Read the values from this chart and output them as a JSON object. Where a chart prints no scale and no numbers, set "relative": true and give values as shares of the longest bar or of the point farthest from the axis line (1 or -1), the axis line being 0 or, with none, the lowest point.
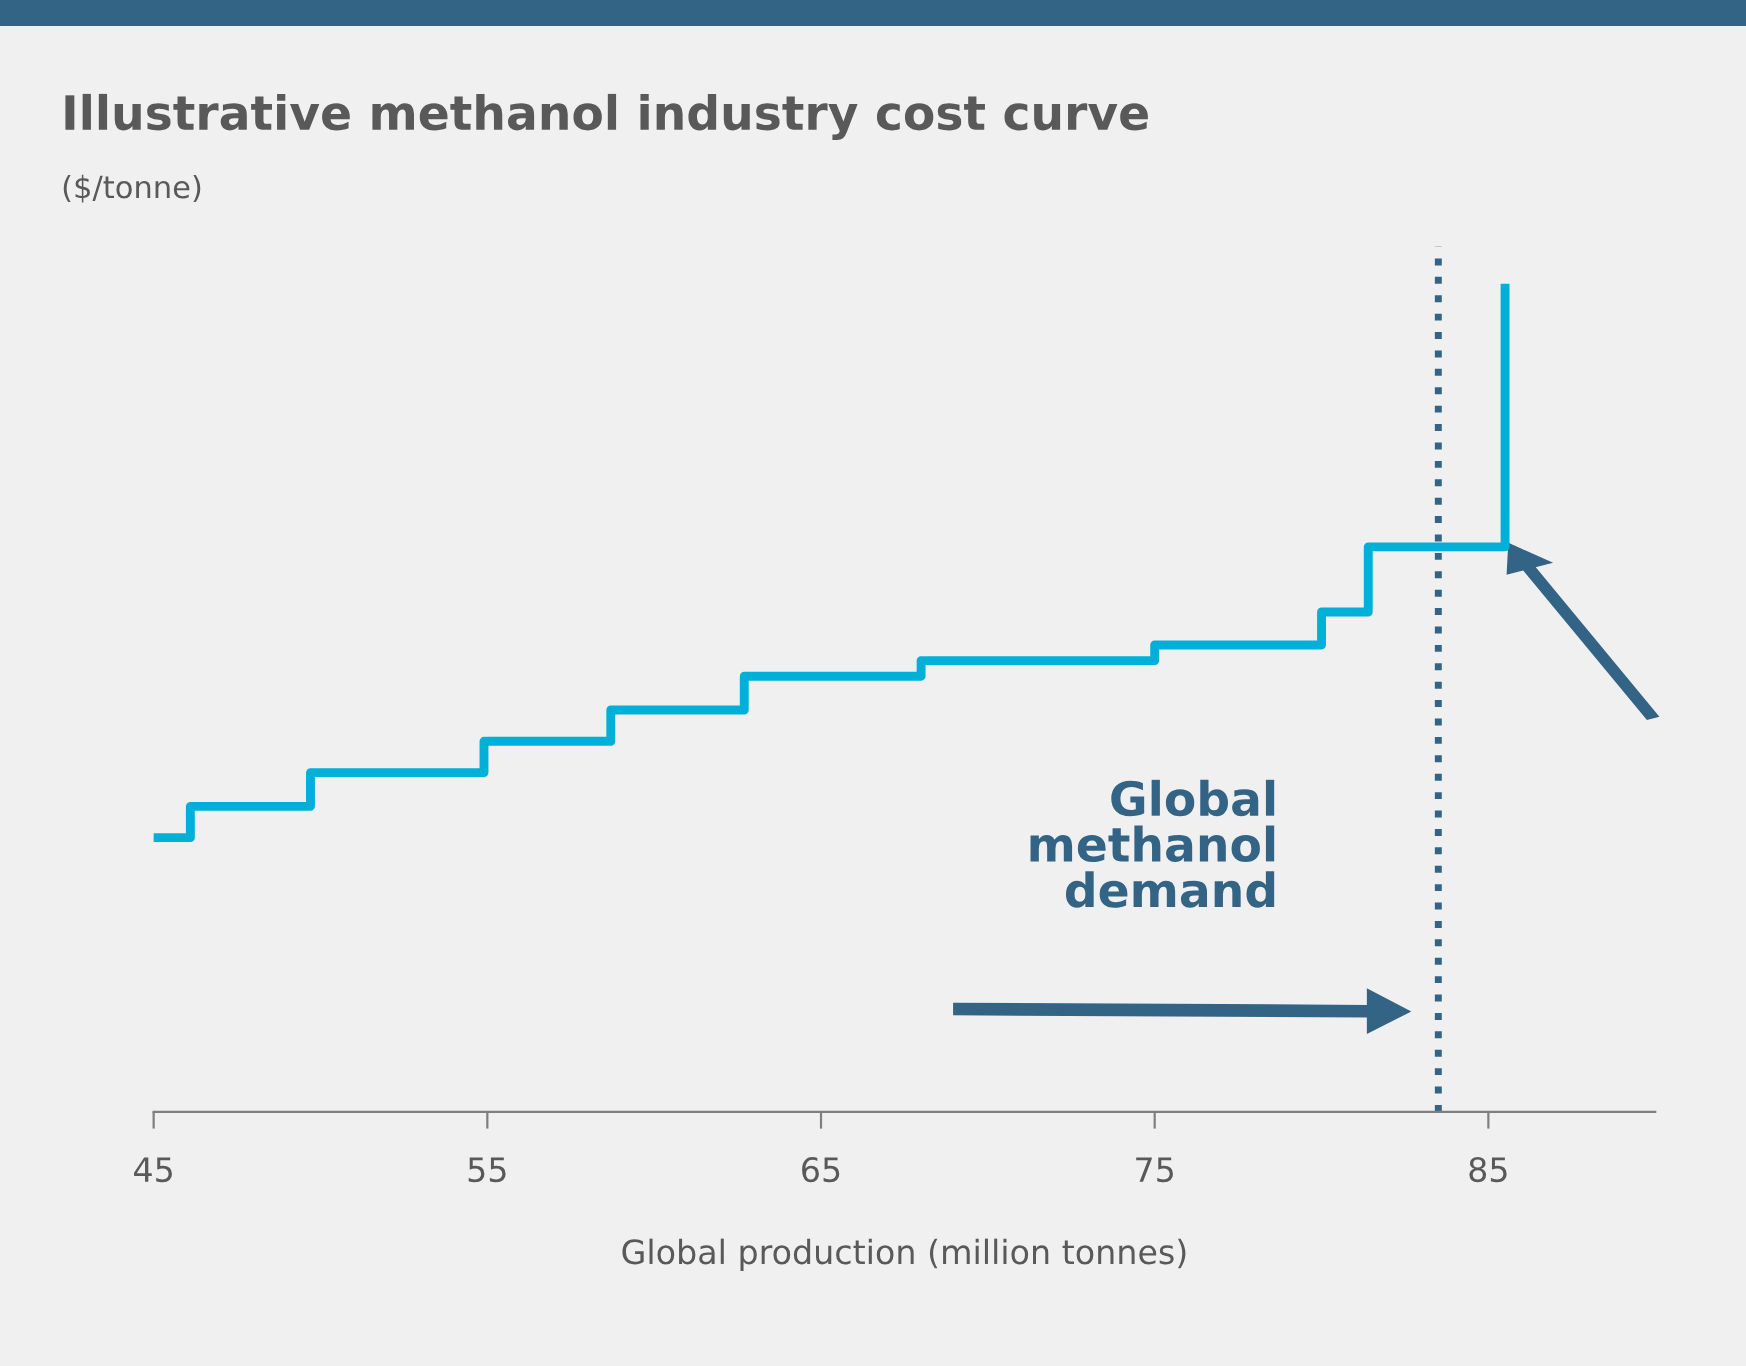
{
  "chart_data": {
    "type": "step",
    "title": "Illustrative methanol industry cost curve",
    "subtitle": "($/tonne)",
    "xlabel": "Global production (million tonnes)",
    "relative": true,
    "series": [
      {
        "color": "#00b0d8",
        "x": [
          45,
          46.1,
          49.7,
          54.9,
          58.7,
          62.7,
          68.0,
          75.0,
          80.0,
          81.4,
          85.5
        ],
        "values": [
          0.333,
          0.371,
          0.412,
          0.45,
          0.488,
          0.529,
          0.548,
          0.567,
          0.607,
          0.686,
          1
        ]
      }
    ],
    "xlim": [
      45,
      90
    ],
    "xticks": [
      45,
      55,
      65,
      75,
      85
    ],
    "grid": false,
    "legend": false,
    "tick_labels": "x",
    "line_style": "solid",
    "marker": "none",
    "ref_lines": [
      {
        "axis": "x",
        "value": 83.5,
        "label": "Global methanol demand",
        "color": "#336485",
        "line_style": "dotted"
      }
    ]
  }
}
